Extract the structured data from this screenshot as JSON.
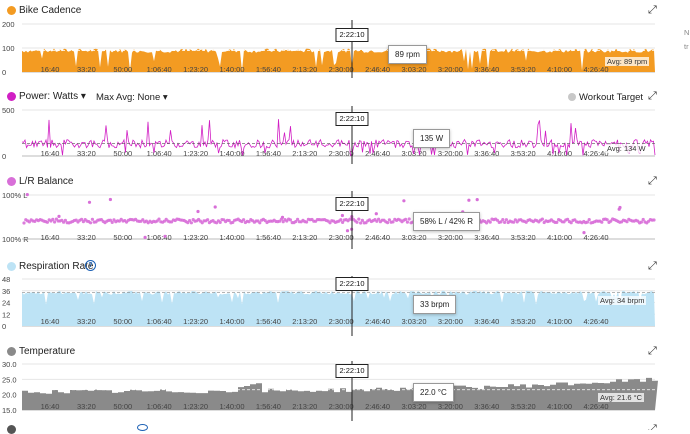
{
  "cursor_time": "2:22:10",
  "x_ticks": [
    "16:40",
    "33:20",
    "50:00",
    "1:06:40",
    "1:23:20",
    "1:40:00",
    "1:56:40",
    "2:13:20",
    "2:30:00",
    "2:46:40",
    "3:03:20",
    "3:20:00",
    "3:36:40",
    "3:53:20",
    "4:10:00",
    "4:26:40"
  ],
  "side_letters": [
    "N",
    "tr"
  ],
  "expand_glyph": "⤢",
  "panels": {
    "cadence": {
      "title": "Bike Cadence",
      "color": "#f39b22",
      "icon": "dot-icon",
      "y_ticks": [
        "200",
        "100",
        "0"
      ],
      "tooltip": "89 rpm",
      "avg": "Avg: 89 rpm",
      "chart_data": {
        "type": "area",
        "y_range": [
          0,
          200
        ],
        "typical": 89,
        "average": 89,
        "unit": "rpm"
      }
    },
    "power": {
      "title": "Power: Watts",
      "max_avg": "Max Avg: None",
      "target": "Workout Target",
      "color": "#d11fc4",
      "y_ticks": [
        "500",
        "0"
      ],
      "tooltip": "135 W",
      "avg": "Avg: 134 W",
      "chart_data": {
        "type": "line",
        "y_range": [
          0,
          500
        ],
        "typical": 134,
        "average": 134,
        "unit": "W"
      }
    },
    "balance": {
      "title": "L/R Balance",
      "color": "#d86fd8",
      "y_ticks": [
        "100% L",
        "100% R"
      ],
      "tooltip": "58% L / 42% R",
      "chart_data": {
        "type": "scatter",
        "y_range": [
          "100% L",
          "100% R"
        ],
        "typical_left_pct": 58,
        "typical_right_pct": 42
      }
    },
    "respiration": {
      "title": "Respiration Rate",
      "info_icon": "?",
      "color": "#bde3f5",
      "y_ticks": [
        "48",
        "36",
        "24",
        "12",
        "0"
      ],
      "tooltip": "33 brpm",
      "avg": "Avg: 34 brpm",
      "chart_data": {
        "type": "area",
        "y_range": [
          0,
          48
        ],
        "typical": 34,
        "average": 34,
        "unit": "brpm"
      }
    },
    "temperature": {
      "title": "Temperature",
      "color": "#8a8a8a",
      "y_ticks": [
        "30.0",
        "25.0",
        "20.0",
        "15.0"
      ],
      "tooltip": "22.0 °C",
      "avg": "Avg: 21.6 °C",
      "chart_data": {
        "type": "area",
        "y_range": [
          15,
          30
        ],
        "start": 21,
        "end": 25,
        "average": 21.6,
        "unit": "°C"
      }
    }
  }
}
